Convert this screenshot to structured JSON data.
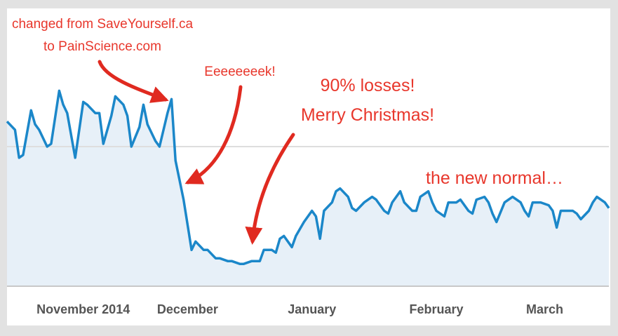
{
  "chart_data": {
    "type": "area",
    "annotations": [
      "changed from SaveYourself.ca",
      "to PainScience.com",
      "Eeeeeeeek!",
      "90% losses!",
      "Merry Christmas!",
      "the new normal…"
    ],
    "x": [
      0,
      2,
      3,
      4,
      6,
      7,
      8,
      10,
      11,
      13,
      14,
      15,
      17,
      19,
      20,
      22,
      23,
      24,
      26,
      27,
      29,
      30,
      31,
      33,
      34,
      35,
      37,
      38,
      40,
      41,
      42,
      44,
      45,
      46,
      47,
      49,
      50,
      52,
      53,
      55,
      56,
      58,
      59,
      61,
      63,
      64,
      66,
      67,
      68,
      69,
      71,
      72,
      74,
      76,
      77,
      78,
      79,
      81,
      82,
      83,
      85,
      86,
      87,
      89,
      91,
      92,
      94,
      95,
      96,
      98,
      99,
      101,
      102,
      103,
      105,
      106,
      107,
      109,
      110,
      112,
      113,
      115,
      116,
      117,
      119,
      120,
      121,
      122,
      124,
      125,
      126,
      128,
      129,
      130,
      131,
      133,
      135,
      136,
      137,
      138,
      140,
      141,
      142,
      143,
      145,
      146,
      147,
      149,
      150
    ],
    "values": [
      59,
      56,
      46,
      47,
      63,
      58,
      56,
      50,
      51,
      70,
      65,
      62,
      46,
      66,
      65,
      62,
      62,
      51,
      61,
      68,
      65,
      61,
      50,
      57,
      65,
      58,
      52,
      50,
      62,
      67,
      45,
      31,
      22,
      13,
      16,
      13,
      13,
      10,
      10,
      9,
      9,
      8,
      8,
      9,
      9,
      13,
      13,
      12,
      17,
      18,
      14,
      18,
      23,
      27,
      25,
      17,
      27,
      30,
      34,
      35,
      32,
      28,
      27,
      30,
      32,
      31,
      27,
      26,
      30,
      34,
      30,
      27,
      27,
      32,
      34,
      30,
      27,
      25,
      30,
      30,
      31,
      27,
      26,
      31,
      32,
      30,
      26,
      23,
      30,
      31,
      32,
      30,
      27,
      25,
      30,
      30,
      29,
      27,
      21,
      27,
      27,
      27,
      26,
      24,
      27,
      30,
      32,
      30,
      28
    ],
    "color": "#1b87c9",
    "fill": "#e7f0f8",
    "xlim": [
      0,
      150
    ],
    "xticks": [
      {
        "value": 19,
        "label": "November 2014"
      },
      {
        "value": 45,
        "label": "December"
      },
      {
        "value": 76,
        "label": "January"
      },
      {
        "value": 107,
        "label": "February"
      },
      {
        "value": 134,
        "label": "March"
      }
    ],
    "ylim": [
      0,
      100
    ],
    "yticks": [
      0,
      50
    ],
    "grid": true
  }
}
